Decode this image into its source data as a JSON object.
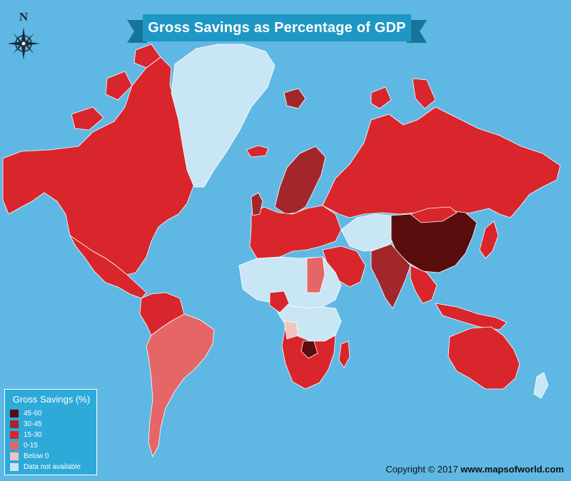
{
  "title": "Gross Savings as Percentage of GDP",
  "compass": {
    "north_label": "N"
  },
  "legend": {
    "title": "Gross Savings (%)",
    "items": [
      {
        "label": "45-60",
        "color": "#5a0d0d"
      },
      {
        "label": "30-45",
        "color": "#a3262a"
      },
      {
        "label": "15-30",
        "color": "#d8262c"
      },
      {
        "label": "0-15",
        "color": "#e56666"
      },
      {
        "label": "Below 0",
        "color": "#f2c4c0"
      },
      {
        "label": "Data not available",
        "color": "#c9e6f5"
      }
    ]
  },
  "copyright": {
    "prefix": "Copyright © 2017",
    "site": "www.mapsofworld.com"
  },
  "colors": {
    "ocean": "#5fb8e4",
    "title_ribbon": "#1f97c4",
    "title_ribbon_tail": "#17759a",
    "border": "#ffffff"
  },
  "regions": [
    {
      "name": "Alaska/Canada/USA",
      "category": "15-30"
    },
    {
      "name": "Greenland",
      "category": "Data not available"
    },
    {
      "name": "Mexico",
      "category": "15-30"
    },
    {
      "name": "Russia",
      "category": "15-30"
    },
    {
      "name": "Scandinavia",
      "category": "30-45"
    },
    {
      "name": "Europe",
      "category": "15-30"
    },
    {
      "name": "Central Asia",
      "category": "Data not available"
    },
    {
      "name": "China",
      "category": "45-60"
    },
    {
      "name": "India",
      "category": "30-45"
    },
    {
      "name": "North Africa",
      "category": "Data not available"
    },
    {
      "name": "Southern Africa",
      "category": "15-30"
    },
    {
      "name": "Brazil/Argentina",
      "category": "0-15"
    },
    {
      "name": "Australia",
      "category": "15-30"
    },
    {
      "name": "Indonesia/SE Asia",
      "category": "15-30"
    },
    {
      "name": "Japan",
      "category": "15-30"
    }
  ]
}
